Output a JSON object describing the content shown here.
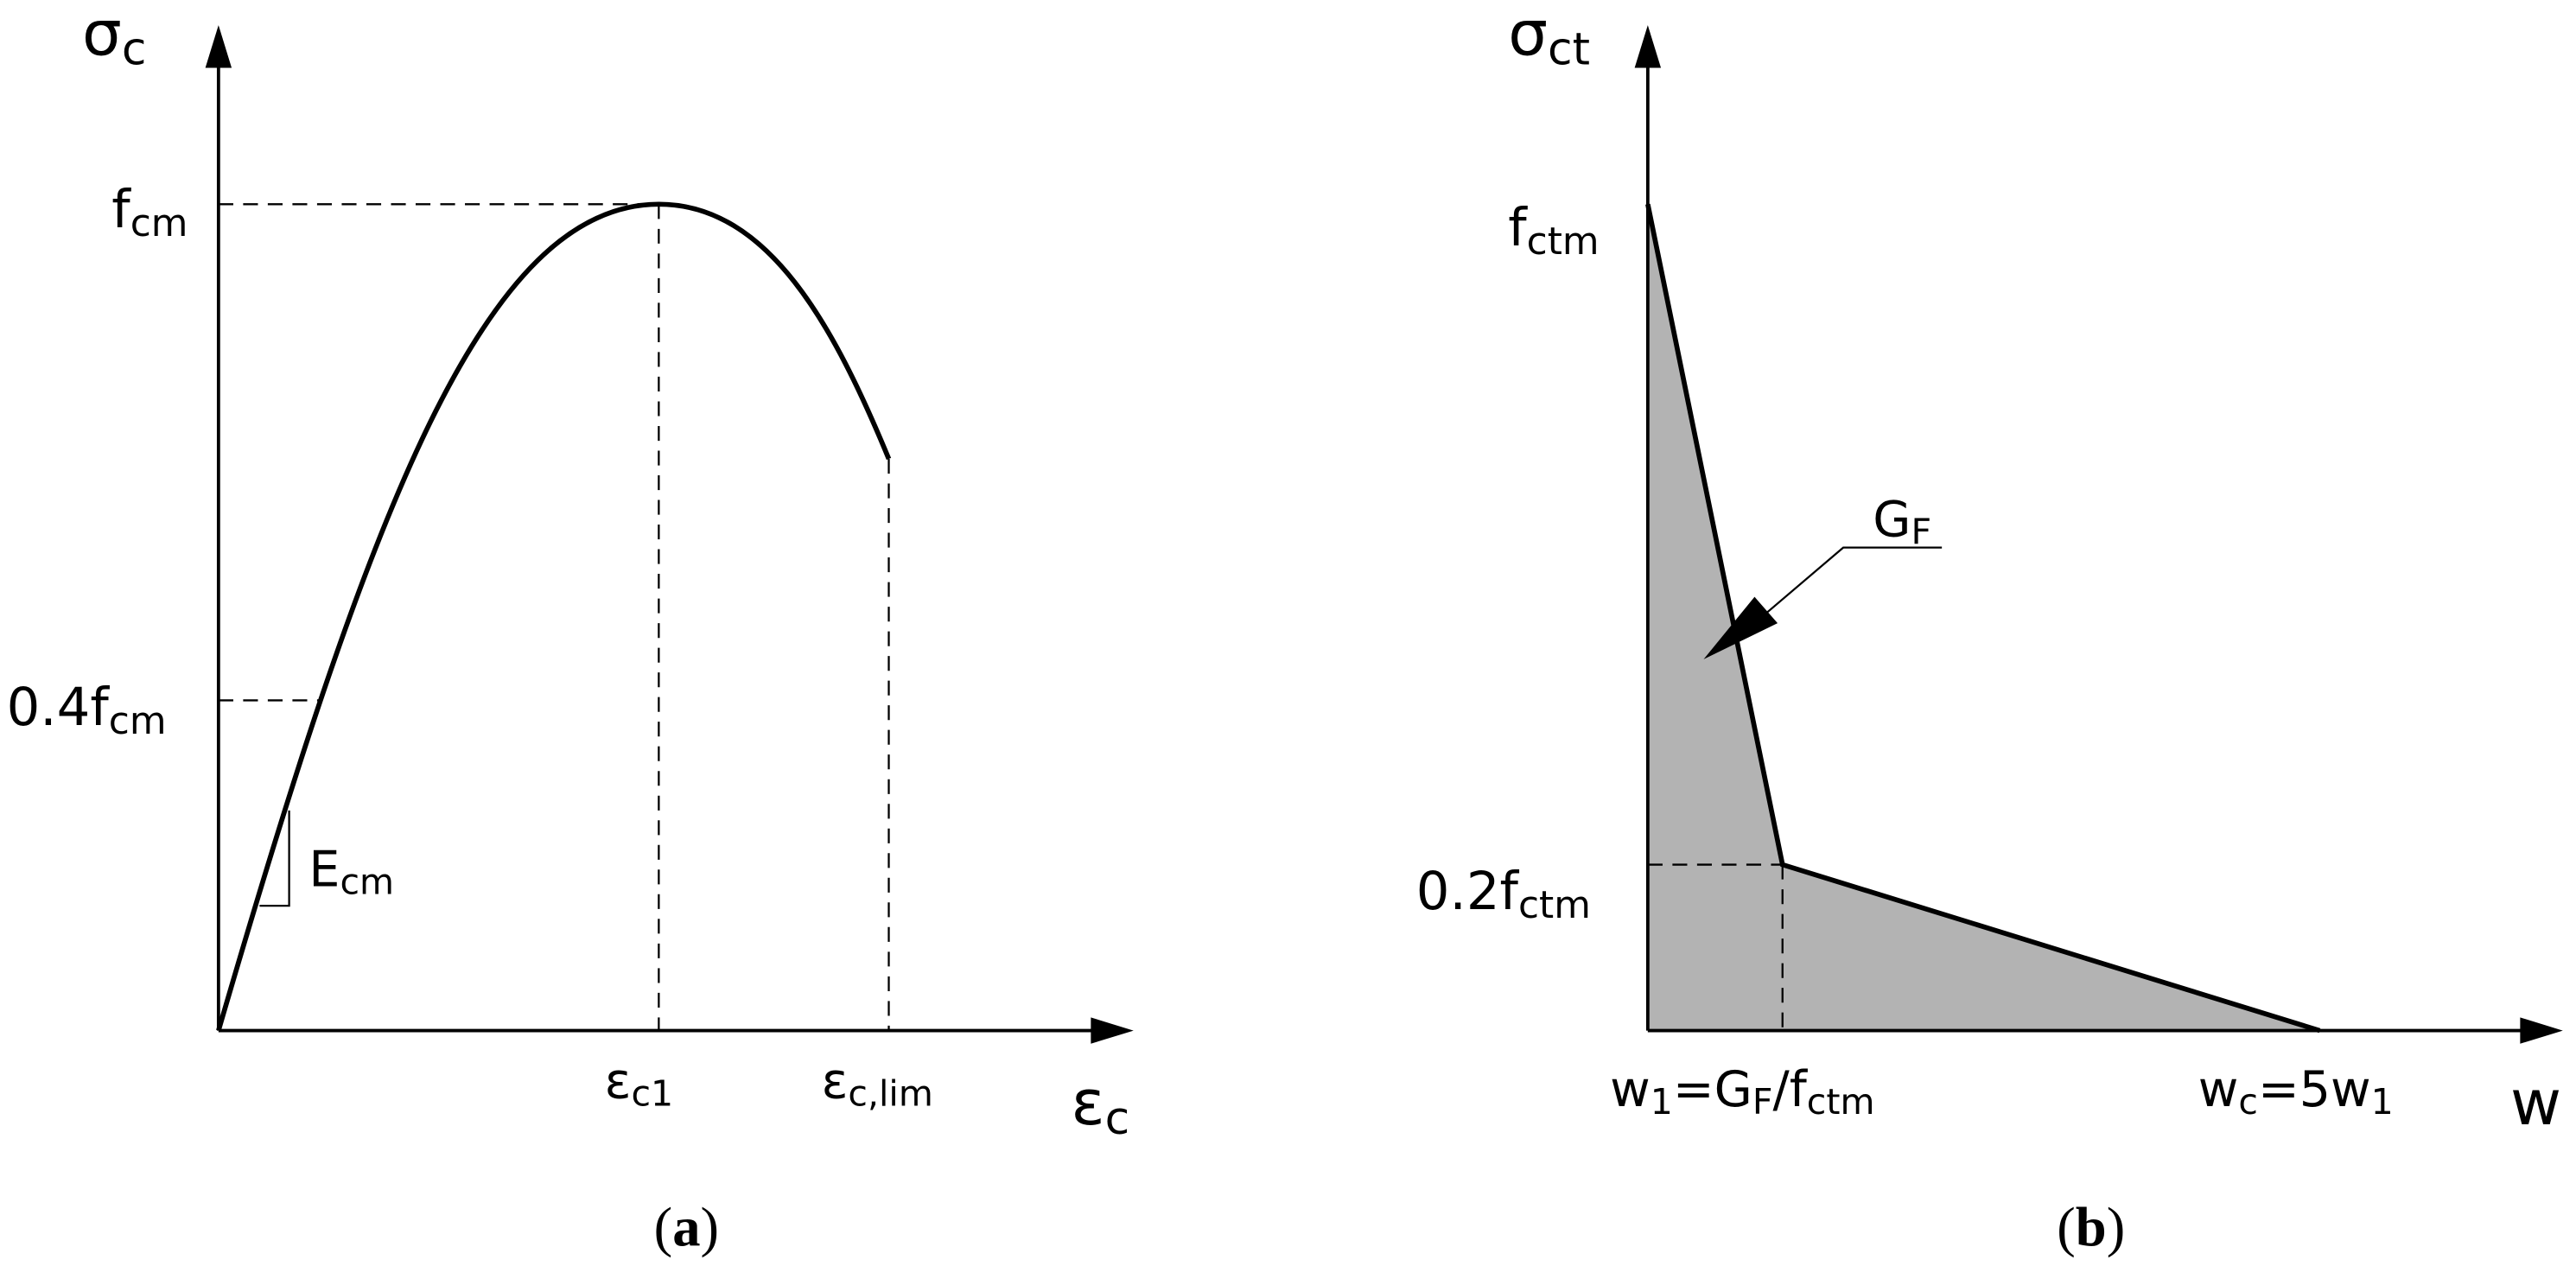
{
  "panel_a": {
    "y_axis_label": {
      "parts": [
        {
          "text": "σ"
        },
        {
          "text": "c",
          "sub": true
        }
      ]
    },
    "x_axis_label": {
      "parts": [
        {
          "text": "ε"
        },
        {
          "text": "c",
          "sub": true
        }
      ]
    },
    "peak_stress": {
      "parts": [
        {
          "text": "f"
        },
        {
          "text": "cm",
          "sub": true
        }
      ]
    },
    "elastic_limit": {
      "parts": [
        {
          "text": "0.4f"
        },
        {
          "text": "cm",
          "sub": true
        }
      ]
    },
    "modulus": {
      "parts": [
        {
          "text": "E"
        },
        {
          "text": "cm",
          "sub": true
        }
      ]
    },
    "peak_strain": {
      "parts": [
        {
          "text": "ε"
        },
        {
          "text": "c1",
          "sub": true
        }
      ]
    },
    "ultimate_strain": {
      "parts": [
        {
          "text": "ε"
        },
        {
          "text": "c,lim",
          "sub": true
        }
      ]
    },
    "caption": {
      "parts": [
        {
          "text": "("
        },
        {
          "text": "a",
          "bold": true
        },
        {
          "text": ")"
        }
      ]
    }
  },
  "panel_b": {
    "y_axis_label": {
      "parts": [
        {
          "text": "σ"
        },
        {
          "text": "ct",
          "sub": true
        }
      ]
    },
    "x_axis_label": {
      "parts": [
        {
          "text": "w"
        }
      ]
    },
    "peak_stress": {
      "parts": [
        {
          "text": "f"
        },
        {
          "text": "ctm",
          "sub": true
        }
      ]
    },
    "knee_stress": {
      "parts": [
        {
          "text": "0.2f"
        },
        {
          "text": "ctm",
          "sub": true
        }
      ]
    },
    "fracture_energy": {
      "parts": [
        {
          "text": "G"
        },
        {
          "text": "F",
          "sub": true
        }
      ]
    },
    "knee_opening": {
      "parts": [
        {
          "text": "w"
        },
        {
          "text": "1",
          "sub": true
        },
        {
          "text": "=G"
        },
        {
          "text": "F",
          "sub": true
        },
        {
          "text": "/f"
        },
        {
          "text": "ctm",
          "sub": true
        }
      ]
    },
    "ultimate_opening": {
      "parts": [
        {
          "text": "w"
        },
        {
          "text": "c",
          "sub": true
        },
        {
          "text": "=5w"
        },
        {
          "text": "1",
          "sub": true
        }
      ]
    },
    "caption": {
      "parts": [
        {
          "text": "("
        },
        {
          "text": "b",
          "bold": true
        },
        {
          "text": ")"
        }
      ]
    }
  }
}
